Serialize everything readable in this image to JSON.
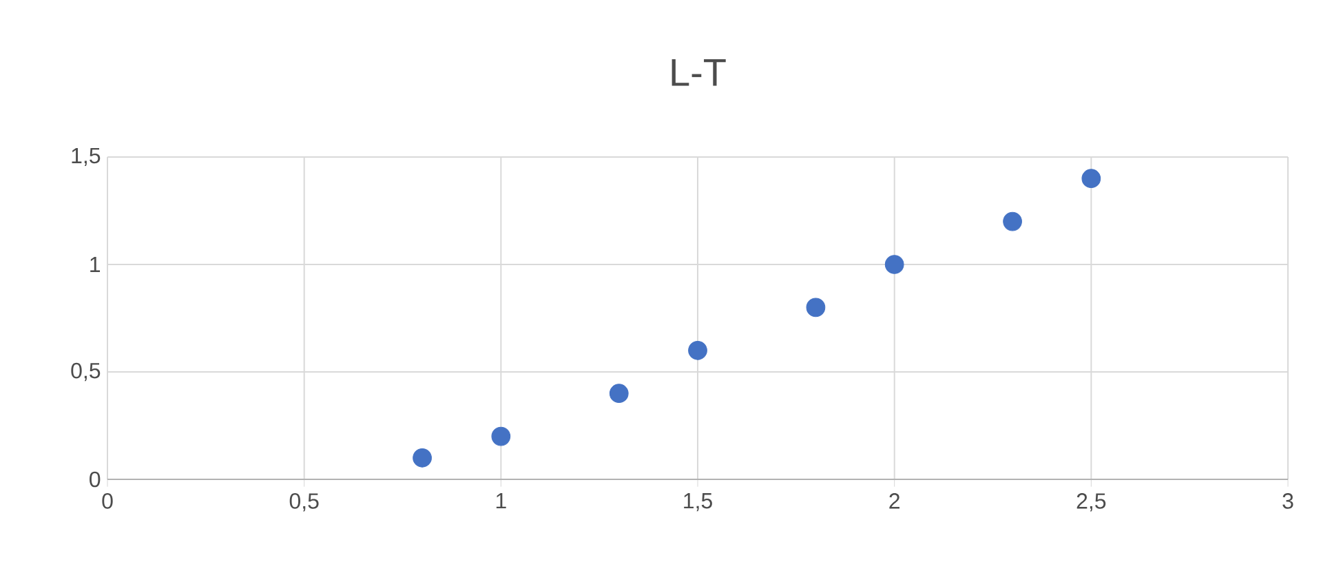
{
  "chart_data": {
    "type": "scatter",
    "title": "L-T",
    "series": [
      {
        "color": "#4472c4",
        "x": [
          0.8,
          1,
          1.3,
          1.5,
          1.8,
          2,
          2.3,
          2.5
        ],
        "values": [
          0.1,
          0.2,
          0.4,
          0.6,
          0.8,
          1,
          1.2,
          1.4
        ]
      }
    ],
    "xlim": [
      0,
      3
    ],
    "ylim": [
      0,
      1.5
    ],
    "xticks": [
      0,
      {
        "value": 0.5,
        "label": "0,5"
      },
      1,
      {
        "value": 1.5,
        "label": "1,5"
      },
      2,
      {
        "value": 2.5,
        "label": "2,5"
      },
      3
    ],
    "yticks": [
      0,
      {
        "value": 0.5,
        "label": "0,5"
      },
      1,
      {
        "value": 1.5,
        "label": "1,5"
      }
    ],
    "grid": true,
    "marker": "circle"
  }
}
